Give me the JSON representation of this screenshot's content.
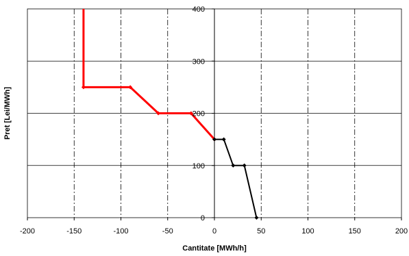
{
  "chart_data": {
    "type": "line",
    "title": "",
    "xlabel": "Cantitate [MWh/h]",
    "ylabel": "Pret [Lei/MWh]",
    "xlim": [
      -200,
      200
    ],
    "ylim": [
      0,
      400
    ],
    "x_ticks": [
      -200,
      -150,
      -100,
      -50,
      0,
      50,
      100,
      150,
      200
    ],
    "y_ticks": [
      0,
      100,
      200,
      300,
      400
    ],
    "grid": {
      "horizontal": "solid",
      "vertical": "dash-dot"
    },
    "legend": "none",
    "series": [
      {
        "color": "#ff0000",
        "marker": "diamond",
        "points": [
          [
            -140,
            400
          ],
          [
            -140,
            250
          ],
          [
            -90,
            250
          ],
          [
            -60,
            200
          ],
          [
            -25,
            200
          ],
          [
            0,
            150
          ]
        ]
      },
      {
        "color": "#000000",
        "marker": "diamond",
        "points": [
          [
            0,
            150
          ],
          [
            10,
            150
          ],
          [
            20,
            100
          ],
          [
            32,
            100
          ],
          [
            45,
            0
          ]
        ]
      }
    ]
  }
}
